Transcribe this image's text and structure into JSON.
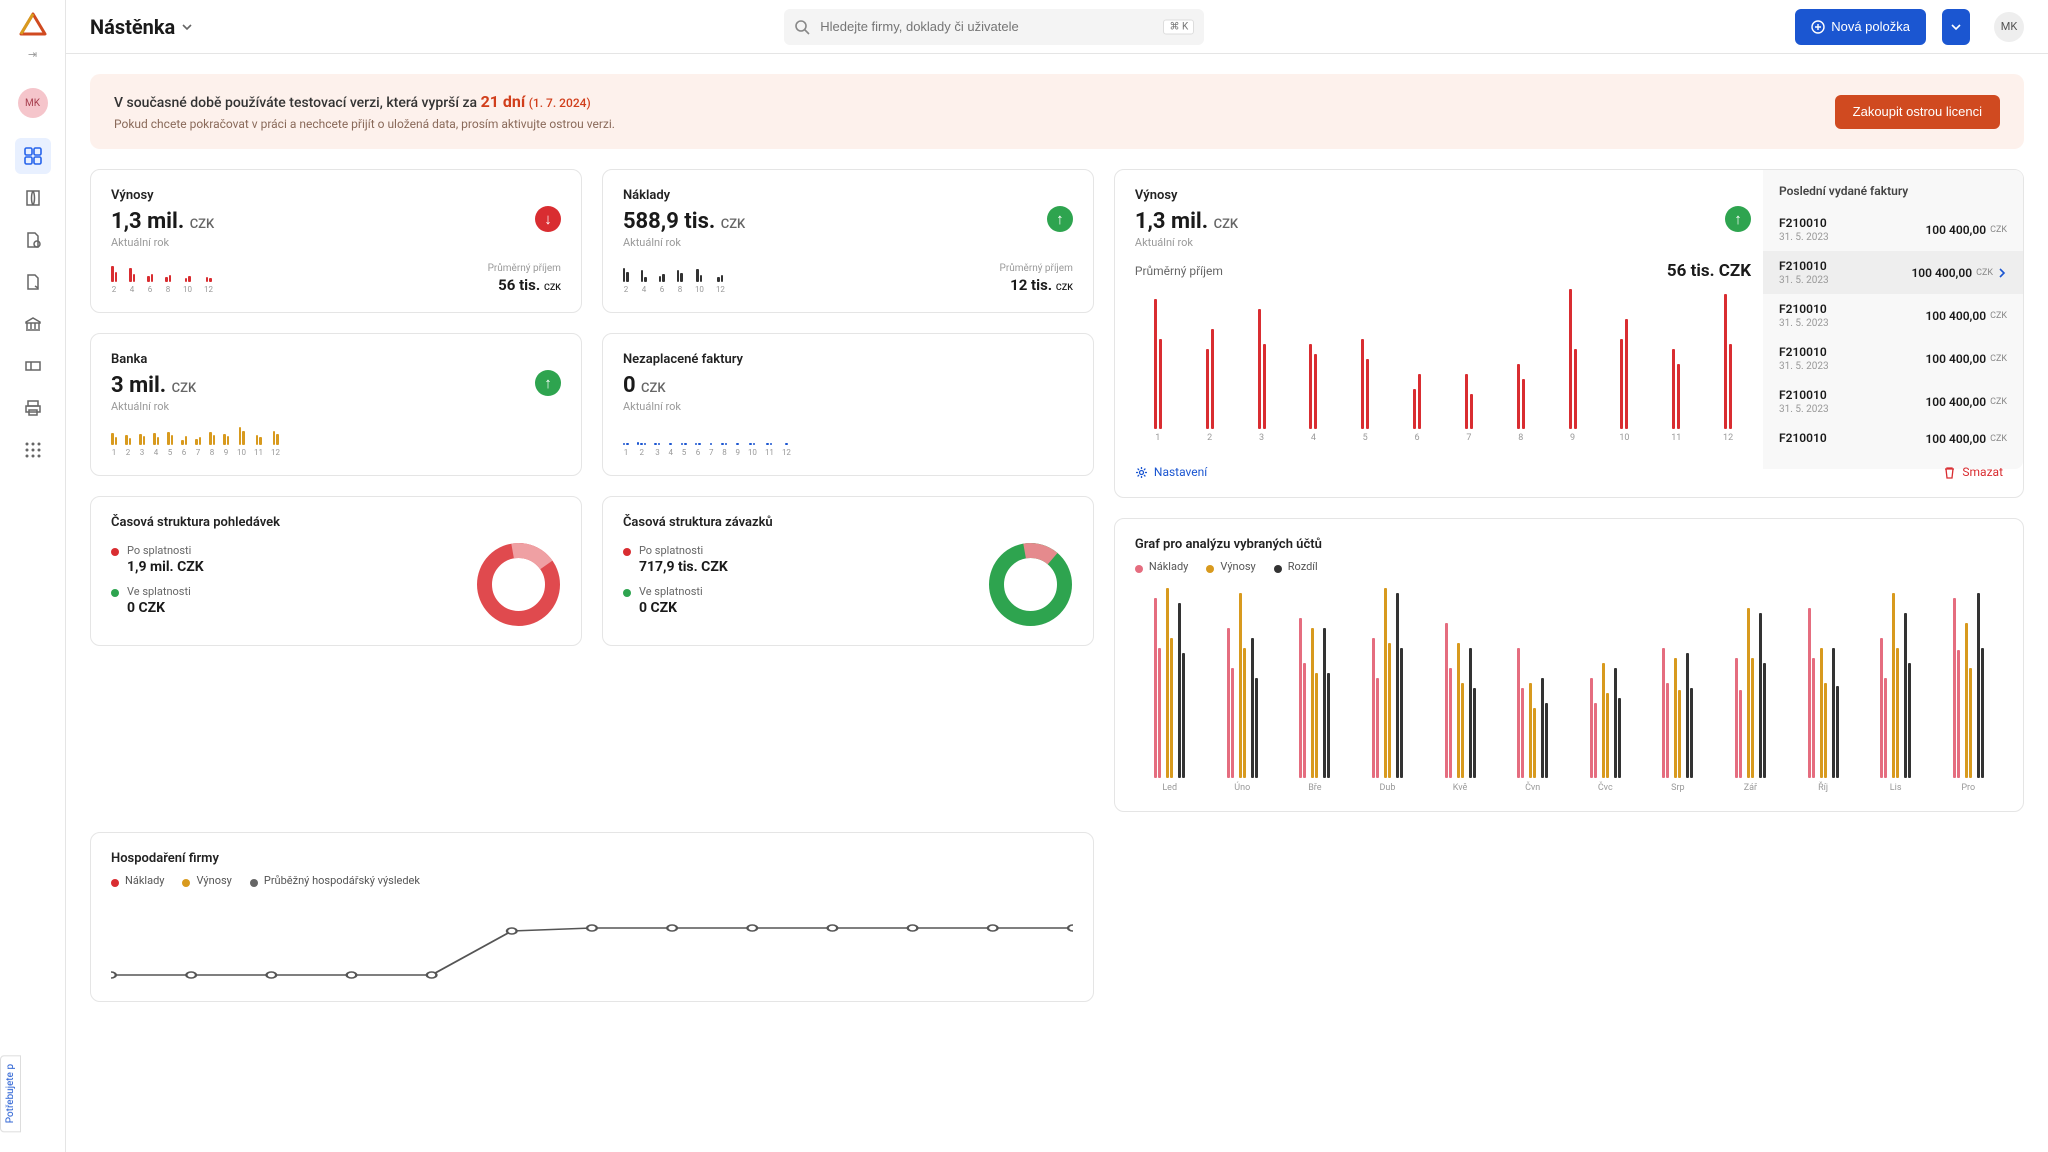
{
  "colors": {
    "primary": "#1b56d1",
    "orange": "#d04a20",
    "red": "#d92d31",
    "green": "#2ea44f",
    "pink": "#e56d7f",
    "amber": "#d89a1e",
    "gray": "#9a9a9a",
    "dark": "#333333"
  },
  "header": {
    "page_title": "Nástěnka",
    "search_placeholder": "Hledejte firmy, doklady či uživatele",
    "search_shortcut": "⌘ K",
    "new_item": "Nová položka",
    "avatar": "MK"
  },
  "sidebar": {
    "avatar": "MK"
  },
  "banner": {
    "prefix": "V současné době používáte testovací verzi, která vyprší za ",
    "days": "21 dní",
    "date": "(1. 7. 2024)",
    "sub": "Pokud chcete pokračovat v práci a nechcete přijít o uložená data, prosím aktivujte ostrou verzi.",
    "cta": "Zakoupit ostrou licenci"
  },
  "cards": {
    "vynosy": {
      "title": "Výnosy",
      "value": "1,3 mil.",
      "unit": "CZK",
      "sub": "Aktuální rok",
      "avg_label": "Průměrný příjem",
      "avg_value": "56 tis.",
      "avg_unit": "CZK",
      "indicator": "down",
      "chart": {
        "labels": [
          "2",
          "4",
          "6",
          "8",
          "10",
          "12"
        ],
        "color": "#d92d31",
        "bars": [
          [
            16,
            10
          ],
          [
            14,
            8
          ],
          [
            6,
            8
          ],
          [
            5,
            7
          ],
          [
            4,
            6
          ],
          [
            5,
            4
          ]
        ]
      }
    },
    "naklady": {
      "title": "Náklady",
      "value": "588,9 tis.",
      "unit": "CZK",
      "sub": "Aktuální rok",
      "avg_label": "Průměrný příjem",
      "avg_value": "12 tis.",
      "avg_unit": "CZK",
      "indicator": "up",
      "chart": {
        "labels": [
          "2",
          "4",
          "6",
          "8",
          "10",
          "12"
        ],
        "color": "#333333",
        "bars": [
          [
            14,
            10
          ],
          [
            12,
            5
          ],
          [
            6,
            8
          ],
          [
            12,
            9
          ],
          [
            13,
            7
          ],
          [
            5,
            7
          ]
        ]
      }
    },
    "banka": {
      "title": "Banka",
      "value": "3 mil.",
      "unit": "CZK",
      "sub": "Aktuální rok",
      "indicator": "up",
      "chart": {
        "labels": [
          "1",
          "2",
          "3",
          "4",
          "5",
          "6",
          "7",
          "8",
          "9",
          "10",
          "11",
          "12"
        ],
        "color": "#d89a1e",
        "bars": [
          [
            12,
            8
          ],
          [
            10,
            7
          ],
          [
            11,
            9
          ],
          [
            12,
            8
          ],
          [
            13,
            10
          ],
          [
            5,
            9
          ],
          [
            6,
            8
          ],
          [
            13,
            10
          ],
          [
            11,
            9
          ],
          [
            18,
            14
          ],
          [
            10,
            8
          ],
          [
            14,
            11
          ]
        ]
      }
    },
    "nezaplacene": {
      "title": "Nezaplacené faktury",
      "value": "0",
      "unit": "CZK",
      "sub": "Aktuální rok",
      "chart": {
        "labels": [
          "1",
          "2",
          "3",
          "4",
          "5",
          "6",
          "7",
          "8",
          "9",
          "10",
          "11",
          "12"
        ],
        "color": "#1b56d1",
        "bars": [
          [
            2,
            2
          ],
          [
            3,
            2,
            2
          ],
          [
            2,
            2
          ],
          [
            2
          ],
          [
            2,
            2
          ],
          [
            2,
            2
          ],
          [
            2
          ],
          [
            2,
            2
          ],
          [
            2
          ],
          [
            2,
            2
          ],
          [
            2,
            2
          ],
          [
            2
          ]
        ]
      }
    },
    "pohledavky": {
      "title": "Časová struktura pohledávek",
      "after_label": "Po splatnosti",
      "after_value": "1,9 mil. CZK",
      "before_label": "Ve splatnosti",
      "before_value": "0 CZK",
      "after_color": "#d92d31",
      "before_color": "#2ea44f",
      "donut": {
        "pct_light": 18,
        "color_main": "#e04a4e",
        "color_light": "#efa0a3"
      }
    },
    "zavazky": {
      "title": "Časová struktura závazků",
      "after_label": "Po splatnosti",
      "after_value": "717,9 tis. CZK",
      "before_label": "Ve splatnosti",
      "before_value": "0 CZK",
      "after_color": "#d92d31",
      "before_color": "#2ea44f",
      "donut": {
        "pct_light": 14,
        "color_main": "#2ea44f",
        "color_light": "#e58a8d"
      }
    },
    "big_vynosy": {
      "title": "Výnosy",
      "value": "1,3 mil.",
      "unit": "CZK",
      "sub": "Aktuální rok",
      "indicator": "up",
      "avg_label": "Průměrný příjem",
      "avg_value": "56 tis. CZK",
      "chart": {
        "labels": [
          "1",
          "2",
          "3",
          "4",
          "5",
          "6",
          "7",
          "8",
          "9",
          "10",
          "11",
          "12"
        ],
        "color": "#d92d31",
        "bars": [
          [
            130,
            90
          ],
          [
            80,
            100
          ],
          [
            120,
            85
          ],
          [
            85,
            75
          ],
          [
            90,
            70
          ],
          [
            40,
            55
          ],
          [
            55,
            35
          ],
          [
            65,
            50
          ],
          [
            140,
            80
          ],
          [
            90,
            110
          ],
          [
            80,
            65
          ],
          [
            135,
            85
          ]
        ]
      },
      "invoices_title": "Poslední vydané faktury",
      "invoices": [
        {
          "id": "F210010",
          "date": "31. 5. 2023",
          "amount": "100 400,00",
          "cur": "CZK"
        },
        {
          "id": "F210010",
          "date": "31. 5. 2023",
          "amount": "100 400,00",
          "cur": "CZK",
          "active": true
        },
        {
          "id": "F210010",
          "date": "31. 5. 2023",
          "amount": "100 400,00",
          "cur": "CZK"
        },
        {
          "id": "F210010",
          "date": "31. 5. 2023",
          "amount": "100 400,00",
          "cur": "CZK"
        },
        {
          "id": "F210010",
          "date": "31. 5. 2023",
          "amount": "100 400,00",
          "cur": "CZK"
        },
        {
          "id": "F210010",
          "date": "",
          "amount": "100 400,00",
          "cur": "CZK"
        }
      ],
      "settings": "Nastavení",
      "delete": "Smazat"
    },
    "analysis": {
      "title": "Graf pro analýzu vybraných účtů",
      "legend": [
        {
          "label": "Náklady",
          "color": "#e56d7f"
        },
        {
          "label": "Výnosy",
          "color": "#d89a1e"
        },
        {
          "label": "Rozdíl",
          "color": "#333333"
        }
      ],
      "labels": [
        "Led",
        "Úno",
        "Bře",
        "Dub",
        "Kvě",
        "Čvn",
        "Čvc",
        "Srp",
        "Zář",
        "Říj",
        "Lis",
        "Pro"
      ],
      "data": [
        {
          "n": [
            180,
            130
          ],
          "v": [
            190,
            140
          ],
          "r": [
            175,
            125
          ]
        },
        {
          "n": [
            150,
            110
          ],
          "v": [
            185,
            130
          ],
          "r": [
            140,
            100
          ]
        },
        {
          "n": [
            160,
            115
          ],
          "v": [
            150,
            105
          ],
          "r": [
            150,
            105
          ]
        },
        {
          "n": [
            140,
            100
          ],
          "v": [
            190,
            135
          ],
          "r": [
            185,
            130
          ]
        },
        {
          "n": [
            155,
            110
          ],
          "v": [
            135,
            95
          ],
          "r": [
            130,
            90
          ]
        },
        {
          "n": [
            130,
            90
          ],
          "v": [
            95,
            70
          ],
          "r": [
            100,
            75
          ]
        },
        {
          "n": [
            100,
            75
          ],
          "v": [
            115,
            85
          ],
          "r": [
            110,
            80
          ]
        },
        {
          "n": [
            130,
            95
          ],
          "v": [
            120,
            88
          ],
          "r": [
            125,
            90
          ]
        },
        {
          "n": [
            120,
            88
          ],
          "v": [
            170,
            120
          ],
          "r": [
            165,
            115
          ]
        },
        {
          "n": [
            170,
            120
          ],
          "v": [
            130,
            95
          ],
          "r": [
            130,
            92
          ]
        },
        {
          "n": [
            140,
            100
          ],
          "v": [
            185,
            130
          ],
          "r": [
            165,
            115
          ]
        },
        {
          "n": [
            180,
            128
          ],
          "v": [
            155,
            110
          ],
          "r": [
            185,
            130
          ]
        }
      ]
    },
    "hospodareni": {
      "title": "Hospodaření firmy",
      "legend": [
        {
          "label": "Náklady",
          "color": "#d92d31"
        },
        {
          "label": "Výnosy",
          "color": "#d89a1e"
        },
        {
          "label": "Průběžný hospodářský výsledek",
          "color": "#666666"
        }
      ],
      "points": [
        72,
        72,
        72,
        72,
        72,
        28,
        25,
        25,
        25,
        25,
        25,
        25,
        25
      ]
    }
  },
  "help": "Potřebujete p"
}
